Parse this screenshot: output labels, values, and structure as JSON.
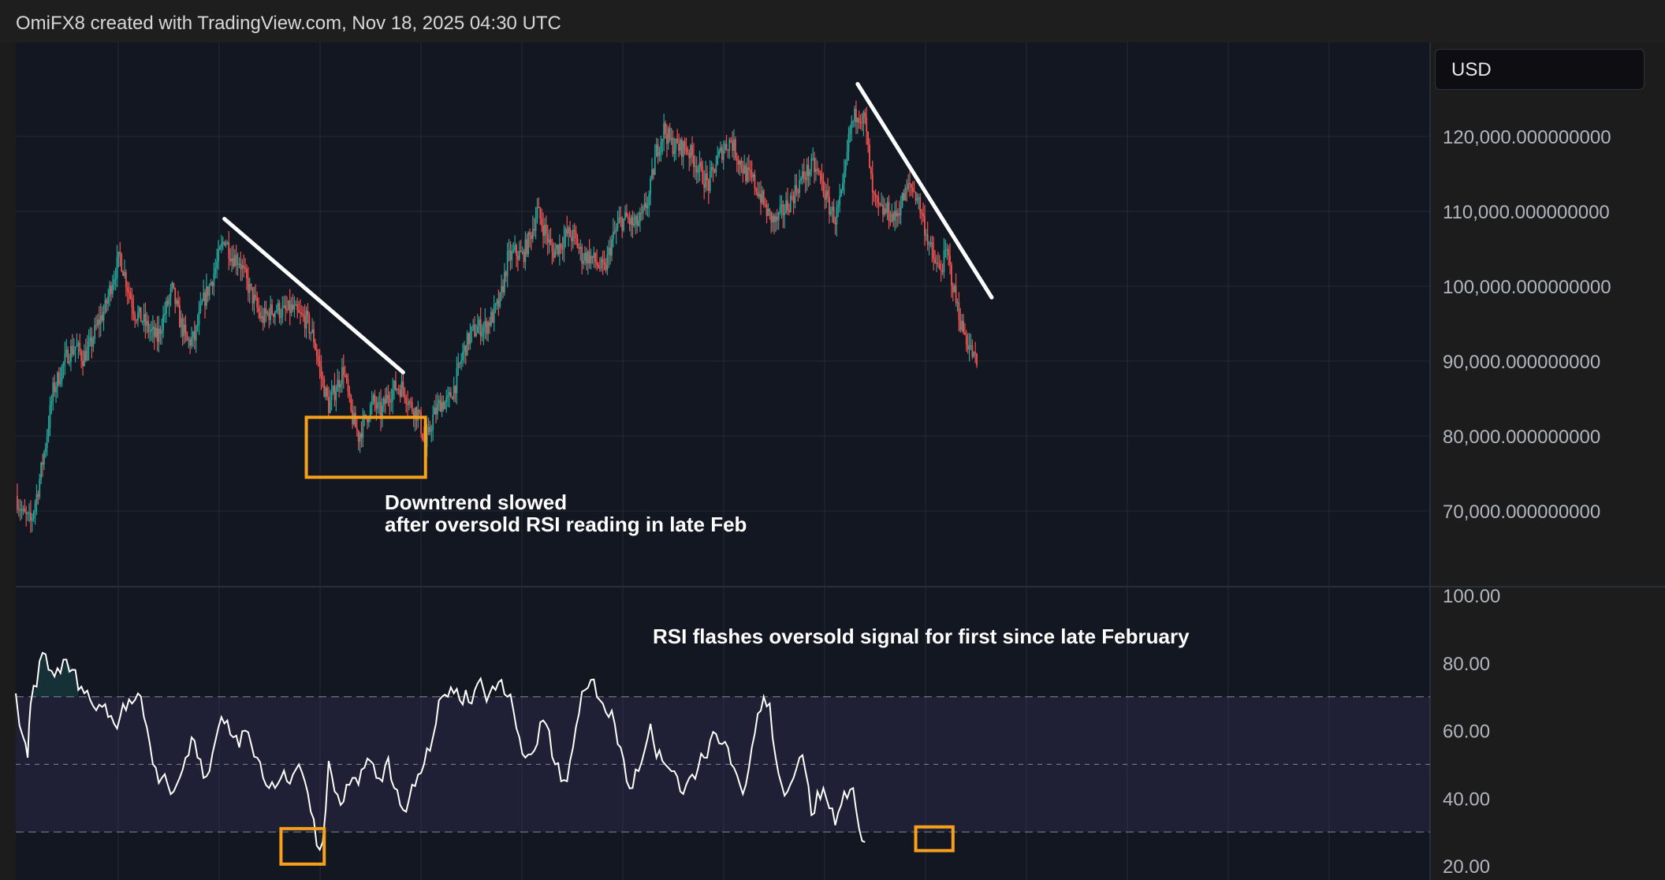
{
  "header": {
    "credit": "OmiFX8 created with TradingView.com, Nov 18, 2025 04:30 UTC"
  },
  "currency_label": "USD",
  "colors": {
    "background": "#131722",
    "grid": "#242936",
    "up_candle": "#26a69a",
    "down_candle": "#ef5350",
    "trendline": "#ffffff",
    "highlight_box": "#f7a11a",
    "rsi_line": "#ffffff",
    "rsi_band": "#7e57c2",
    "axis_text": "#b2b5be"
  },
  "annotations": {
    "price_note_line1": "Downtrend slowed",
    "price_note_line2": "after oversold RSI reading in late Feb",
    "rsi_note": "RSI flashes oversold signal for first since late February"
  },
  "chart_data": [
    {
      "type": "candlestick",
      "series_name": "",
      "y_ticks": [
        "120,000.000000000",
        "110,000.000000000",
        "100,000.000000000",
        "90,000.000000000",
        "80,000.000000000",
        "70,000.000000000"
      ],
      "ylim": [
        62000,
        131000
      ],
      "grid": true,
      "approx_close_path": [
        [
          0,
          72000
        ],
        [
          5,
          69500
        ],
        [
          10,
          68500
        ],
        [
          15,
          73000
        ],
        [
          20,
          79000
        ],
        [
          25,
          86000
        ],
        [
          30,
          88500
        ],
        [
          35,
          91000
        ],
        [
          40,
          92000
        ],
        [
          45,
          90500
        ],
        [
          50,
          92000
        ],
        [
          55,
          95000
        ],
        [
          60,
          97000
        ],
        [
          65,
          101000
        ],
        [
          70,
          104000
        ],
        [
          75,
          100000
        ],
        [
          80,
          96500
        ],
        [
          85,
          95500
        ],
        [
          90,
          94000
        ],
        [
          95,
          93000
        ],
        [
          100,
          96500
        ],
        [
          105,
          99500
        ],
        [
          110,
          95500
        ],
        [
          115,
          92500
        ],
        [
          120,
          93000
        ],
        [
          125,
          97500
        ],
        [
          130,
          100000
        ],
        [
          135,
          103000
        ],
        [
          140,
          106500
        ],
        [
          145,
          104000
        ],
        [
          150,
          103500
        ],
        [
          155,
          100500
        ],
        [
          160,
          98000
        ],
        [
          165,
          95500
        ],
        [
          170,
          96500
        ],
        [
          175,
          97000
        ],
        [
          180,
          96500
        ],
        [
          185,
          97000
        ],
        [
          190,
          96000
        ],
        [
          195,
          95500
        ],
        [
          200,
          93000
        ],
        [
          205,
          88000
        ],
        [
          210,
          84000
        ],
        [
          215,
          86500
        ],
        [
          220,
          89000
        ],
        [
          225,
          83000
        ],
        [
          230,
          80000
        ],
        [
          235,
          82500
        ],
        [
          240,
          84500
        ],
        [
          245,
          83000
        ],
        [
          250,
          85500
        ],
        [
          255,
          86500
        ],
        [
          260,
          86500
        ],
        [
          265,
          84000
        ],
        [
          270,
          83000
        ],
        [
          275,
          78500
        ],
        [
          280,
          82500
        ],
        [
          285,
          84500
        ],
        [
          290,
          84500
        ],
        [
          295,
          87000
        ],
        [
          300,
          91000
        ],
        [
          305,
          93500
        ],
        [
          310,
          94500
        ],
        [
          315,
          94500
        ],
        [
          320,
          96000
        ],
        [
          325,
          98000
        ],
        [
          330,
          103500
        ],
        [
          335,
          104500
        ],
        [
          340,
          104000
        ],
        [
          345,
          106500
        ],
        [
          350,
          110000
        ],
        [
          355,
          107500
        ],
        [
          360,
          104500
        ],
        [
          365,
          105500
        ],
        [
          370,
          107000
        ],
        [
          375,
          106500
        ],
        [
          380,
          104000
        ],
        [
          385,
          104000
        ],
        [
          390,
          103000
        ],
        [
          395,
          102000
        ],
        [
          400,
          106000
        ],
        [
          405,
          108500
        ],
        [
          410,
          109000
        ],
        [
          415,
          108000
        ],
        [
          420,
          109000
        ],
        [
          425,
          112000
        ],
        [
          430,
          118000
        ],
        [
          435,
          121000
        ],
        [
          440,
          119000
        ],
        [
          445,
          118500
        ],
        [
          450,
          118500
        ],
        [
          455,
          117000
        ],
        [
          460,
          115000
        ],
        [
          465,
          113500
        ],
        [
          470,
          116500
        ],
        [
          475,
          118500
        ],
        [
          480,
          119500
        ],
        [
          485,
          117000
        ],
        [
          490,
          115000
        ],
        [
          495,
          114000
        ],
        [
          500,
          112000
        ],
        [
          505,
          109500
        ],
        [
          510,
          108500
        ],
        [
          515,
          110000
        ],
        [
          520,
          111500
        ],
        [
          525,
          113500
        ],
        [
          530,
          115000
        ],
        [
          535,
          116000
        ],
        [
          540,
          114500
        ],
        [
          545,
          111000
        ],
        [
          550,
          109000
        ],
        [
          555,
          112500
        ],
        [
          560,
          121000
        ],
        [
          565,
          123500
        ],
        [
          570,
          122000
        ],
        [
          575,
          112000
        ],
        [
          580,
          110000
        ],
        [
          585,
          110000
        ],
        [
          590,
          109000
        ],
        [
          595,
          111500
        ],
        [
          600,
          113500
        ],
        [
          605,
          112000
        ],
        [
          610,
          108000
        ],
        [
          615,
          104000
        ],
        [
          620,
          102000
        ],
        [
          625,
          104500
        ],
        [
          630,
          99000
        ],
        [
          635,
          94500
        ],
        [
          640,
          92000
        ],
        [
          645,
          89500
        ]
      ],
      "trendlines": [
        {
          "from": [
            140,
            109000
          ],
          "to": [
            260,
            88500
          ]
        },
        {
          "from": [
            565,
            127000
          ],
          "to": [
            655,
            98500
          ]
        }
      ],
      "highlight_boxes": [
        {
          "x": [
            195,
            275
          ],
          "y": [
            74500,
            82500
          ]
        }
      ]
    },
    {
      "type": "line",
      "series_name": "",
      "y_ticks": [
        "100.00",
        "80.00",
        "60.00",
        "40.00",
        "20.00"
      ],
      "ylim": [
        17.5,
        100
      ],
      "overbought": 70,
      "midline": 50,
      "oversold": 30,
      "values": [
        [
          0,
          71
        ],
        [
          5,
          58
        ],
        [
          8,
          52
        ],
        [
          10,
          68
        ],
        [
          14,
          73
        ],
        [
          18,
          83
        ],
        [
          22,
          78
        ],
        [
          26,
          76
        ],
        [
          30,
          77
        ],
        [
          34,
          81
        ],
        [
          38,
          78
        ],
        [
          42,
          72
        ],
        [
          46,
          71
        ],
        [
          50,
          69
        ],
        [
          54,
          66
        ],
        [
          58,
          67
        ],
        [
          62,
          64
        ],
        [
          66,
          62
        ],
        [
          70,
          64
        ],
        [
          74,
          66
        ],
        [
          78,
          68
        ],
        [
          82,
          71
        ],
        [
          86,
          64
        ],
        [
          90,
          56
        ],
        [
          94,
          49
        ],
        [
          98,
          46
        ],
        [
          102,
          44
        ],
        [
          106,
          42
        ],
        [
          110,
          46
        ],
        [
          114,
          52
        ],
        [
          118,
          58
        ],
        [
          122,
          52
        ],
        [
          126,
          46
        ],
        [
          130,
          48
        ],
        [
          134,
          57
        ],
        [
          138,
          64
        ],
        [
          142,
          63
        ],
        [
          146,
          58
        ],
        [
          150,
          55
        ],
        [
          154,
          60
        ],
        [
          158,
          56
        ],
        [
          162,
          52
        ],
        [
          166,
          46
        ],
        [
          170,
          43
        ],
        [
          174,
          43
        ],
        [
          178,
          46
        ],
        [
          182,
          45
        ],
        [
          186,
          47
        ],
        [
          190,
          50
        ],
        [
          194,
          45
        ],
        [
          198,
          36
        ],
        [
          202,
          26
        ],
        [
          206,
          27
        ],
        [
          210,
          51
        ],
        [
          214,
          42
        ],
        [
          218,
          38
        ],
        [
          222,
          44
        ],
        [
          226,
          46
        ],
        [
          230,
          44
        ],
        [
          234,
          49
        ],
        [
          238,
          51
        ],
        [
          242,
          46
        ],
        [
          246,
          45
        ],
        [
          250,
          52
        ],
        [
          254,
          43
        ],
        [
          258,
          38
        ],
        [
          262,
          36
        ],
        [
          266,
          44
        ],
        [
          270,
          47
        ],
        [
          274,
          50
        ],
        [
          278,
          54
        ],
        [
          282,
          62
        ],
        [
          286,
          70
        ],
        [
          290,
          70
        ],
        [
          294,
          71
        ],
        [
          298,
          69
        ],
        [
          302,
          72
        ],
        [
          306,
          68
        ],
        [
          310,
          74
        ],
        [
          314,
          72
        ],
        [
          318,
          71
        ],
        [
          322,
          72
        ],
        [
          326,
          75
        ],
        [
          330,
          70
        ],
        [
          334,
          66
        ],
        [
          338,
          58
        ],
        [
          342,
          52
        ],
        [
          346,
          53
        ],
        [
          350,
          56
        ],
        [
          354,
          63
        ],
        [
          358,
          60
        ],
        [
          362,
          50
        ],
        [
          366,
          45
        ],
        [
          370,
          45
        ],
        [
          374,
          55
        ],
        [
          378,
          65
        ],
        [
          382,
          72
        ],
        [
          386,
          75
        ],
        [
          390,
          70
        ],
        [
          394,
          68
        ],
        [
          398,
          64
        ],
        [
          402,
          62
        ],
        [
          406,
          55
        ],
        [
          410,
          45
        ],
        [
          414,
          43
        ],
        [
          418,
          48
        ],
        [
          422,
          54
        ],
        [
          426,
          62
        ],
        [
          430,
          52
        ],
        [
          434,
          51
        ],
        [
          438,
          49
        ],
        [
          442,
          48
        ],
        [
          446,
          42
        ],
        [
          450,
          44
        ],
        [
          454,
          47
        ],
        [
          458,
          49
        ],
        [
          462,
          52
        ],
        [
          466,
          57
        ],
        [
          470,
          59
        ],
        [
          474,
          56
        ],
        [
          478,
          55
        ],
        [
          482,
          49
        ],
        [
          486,
          44
        ],
        [
          490,
          44
        ],
        [
          494,
          55
        ],
        [
          498,
          65
        ],
        [
          502,
          70
        ],
        [
          506,
          68
        ],
        [
          510,
          52
        ],
        [
          514,
          44
        ],
        [
          518,
          42
        ],
        [
          522,
          46
        ],
        [
          526,
          52
        ],
        [
          530,
          48
        ],
        [
          534,
          35
        ],
        [
          538,
          42
        ],
        [
          542,
          43
        ],
        [
          546,
          37
        ],
        [
          550,
          32
        ],
        [
          554,
          38
        ],
        [
          558,
          40
        ],
        [
          562,
          43
        ],
        [
          566,
          31
        ],
        [
          570,
          27
        ]
      ]
    }
  ]
}
